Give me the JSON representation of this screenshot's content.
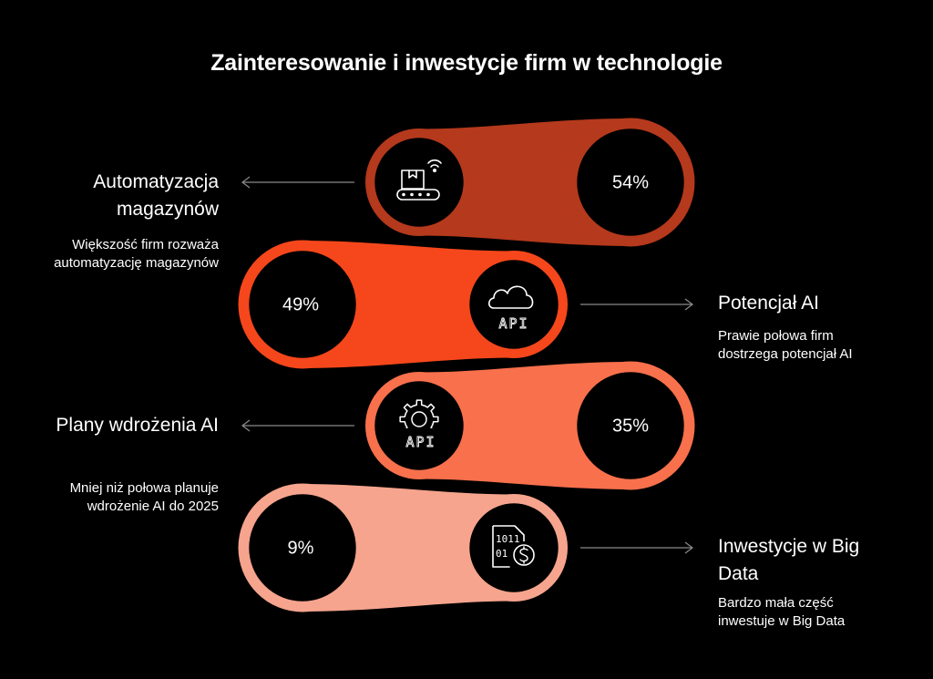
{
  "title": "Zainteresowanie i inwestycje firm w technologie",
  "items": [
    {
      "label": "Automatyzacja magazynów",
      "description": "Większość firm rozważa automatyzację magazynów",
      "percent": "54%",
      "value": 54,
      "color": "#b5391c",
      "icon": "conveyor-package-wifi-icon"
    },
    {
      "label": "Potencjał AI",
      "description": "Prawie połowa firm dostrzega potencjał AI",
      "percent": "49%",
      "value": 49,
      "color": "#f5471b",
      "icon": "cloud-api-icon",
      "icon_text": "API"
    },
    {
      "label": "Plany wdrożenia AI",
      "description": "Mniej niż połowa planuje wdrożenie AI do 2025",
      "percent": "35%",
      "value": 35,
      "color": "#f8704c",
      "icon": "gear-api-icon",
      "icon_text": "API"
    },
    {
      "label": "Inwestycje w Big Data",
      "description": "Bardzo mała część inwestuje w Big Data",
      "percent": "9%",
      "value": 9,
      "color": "#f6a48d",
      "icon": "data-sd-card-dollar-icon",
      "icon_text_top": "1011",
      "icon_text_bottom": "01"
    }
  ]
}
